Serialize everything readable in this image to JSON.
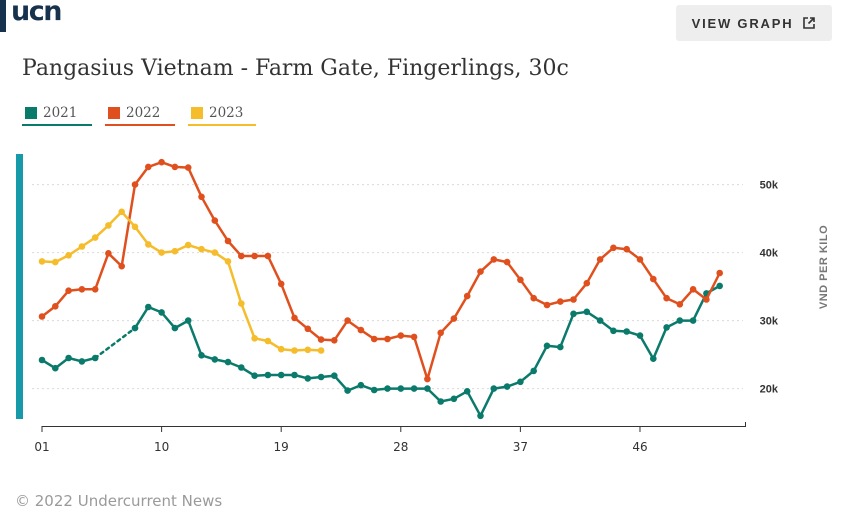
{
  "logo": {
    "text": "ucn"
  },
  "header": {
    "view_graph_label": "VIEW GRAPH",
    "view_graph_icon": "external-link-icon",
    "title": "Pangasius Vietnam - Farm Gate, Fingerlings, 30c"
  },
  "footer": {
    "copyright": "© 2022 Undercurrent News"
  },
  "colors": {
    "2021": "#0a7a6b",
    "2022": "#e0501e",
    "2023": "#f5bc2c",
    "accent": "#1699a8",
    "brand": "#17324d"
  },
  "chart_data": {
    "type": "line",
    "xlabel": "",
    "ylabel": "VND PER KILO",
    "x_ticks": [
      "01",
      "10",
      "19",
      "28",
      "37",
      "46"
    ],
    "x_range": [
      1,
      53
    ],
    "y_ticks": [
      "20k",
      "30k",
      "40k",
      "50k"
    ],
    "ylim": [
      14500,
      54500
    ],
    "grid": "horizontal dotted",
    "legend_position": "top-left",
    "series": [
      {
        "name": "2021",
        "color": "#0a7a6b",
        "points": [
          [
            1,
            24200
          ],
          [
            2,
            23000
          ],
          [
            3,
            24500
          ],
          [
            4,
            24000
          ],
          [
            5,
            24500
          ],
          [
            8,
            28900
          ],
          [
            9,
            32000
          ],
          [
            10,
            31200
          ],
          [
            11,
            28900
          ],
          [
            12,
            30000
          ],
          [
            13,
            24900
          ],
          [
            14,
            24300
          ],
          [
            15,
            23900
          ],
          [
            16,
            23100
          ],
          [
            17,
            21900
          ],
          [
            18,
            22000
          ],
          [
            19,
            22000
          ],
          [
            20,
            22000
          ],
          [
            21,
            21500
          ],
          [
            22,
            21700
          ],
          [
            23,
            21900
          ],
          [
            24,
            19700
          ],
          [
            25,
            20500
          ],
          [
            26,
            19800
          ],
          [
            27,
            20000
          ],
          [
            28,
            20000
          ],
          [
            29,
            20000
          ],
          [
            30,
            20000
          ],
          [
            31,
            18100
          ],
          [
            32,
            18500
          ],
          [
            33,
            19600
          ],
          [
            34,
            16000
          ],
          [
            35,
            20000
          ],
          [
            36,
            20300
          ],
          [
            37,
            21000
          ],
          [
            38,
            22600
          ],
          [
            39,
            26300
          ],
          [
            40,
            26100
          ],
          [
            41,
            31000
          ],
          [
            42,
            31300
          ],
          [
            43,
            30000
          ],
          [
            44,
            28500
          ],
          [
            45,
            28400
          ],
          [
            46,
            27800
          ],
          [
            47,
            24400
          ],
          [
            48,
            29000
          ],
          [
            49,
            30000
          ],
          [
            50,
            30000
          ],
          [
            51,
            34000
          ],
          [
            52,
            35100
          ]
        ],
        "dashed_segment": [
          5,
          8
        ]
      },
      {
        "name": "2022",
        "color": "#e0501e",
        "points": [
          [
            1,
            30600
          ],
          [
            2,
            32100
          ],
          [
            3,
            34400
          ],
          [
            4,
            34600
          ],
          [
            5,
            34600
          ],
          [
            6,
            39900
          ],
          [
            7,
            38000
          ],
          [
            8,
            50000
          ],
          [
            9,
            52600
          ],
          [
            10,
            53300
          ],
          [
            11,
            52600
          ],
          [
            12,
            52500
          ],
          [
            13,
            48200
          ],
          [
            14,
            44700
          ],
          [
            15,
            41700
          ],
          [
            16,
            39500
          ],
          [
            17,
            39500
          ],
          [
            18,
            39500
          ],
          [
            19,
            35400
          ],
          [
            20,
            30400
          ],
          [
            21,
            28800
          ],
          [
            22,
            27200
          ],
          [
            23,
            27100
          ],
          [
            24,
            30000
          ],
          [
            25,
            28600
          ],
          [
            26,
            27300
          ],
          [
            27,
            27300
          ],
          [
            28,
            27800
          ],
          [
            29,
            27600
          ],
          [
            30,
            21400
          ],
          [
            31,
            28200
          ],
          [
            32,
            30300
          ],
          [
            33,
            33600
          ],
          [
            34,
            37200
          ],
          [
            35,
            39000
          ],
          [
            36,
            38600
          ],
          [
            37,
            36000
          ],
          [
            38,
            33300
          ],
          [
            39,
            32300
          ],
          [
            40,
            32800
          ],
          [
            41,
            33100
          ],
          [
            42,
            35500
          ],
          [
            43,
            39000
          ],
          [
            44,
            40700
          ],
          [
            45,
            40500
          ],
          [
            46,
            39000
          ],
          [
            47,
            36100
          ],
          [
            48,
            33300
          ],
          [
            49,
            32400
          ],
          [
            50,
            34600
          ],
          [
            51,
            33100
          ],
          [
            52,
            37000
          ]
        ]
      },
      {
        "name": "2023",
        "color": "#f5bc2c",
        "points": [
          [
            1,
            38700
          ],
          [
            2,
            38600
          ],
          [
            3,
            39600
          ],
          [
            4,
            40900
          ],
          [
            5,
            42200
          ],
          [
            6,
            44000
          ],
          [
            7,
            46000
          ],
          [
            8,
            43800
          ],
          [
            9,
            41200
          ],
          [
            10,
            40000
          ],
          [
            11,
            40200
          ],
          [
            12,
            41100
          ],
          [
            13,
            40500
          ],
          [
            14,
            40000
          ],
          [
            15,
            38700
          ],
          [
            16,
            32500
          ],
          [
            17,
            27400
          ],
          [
            18,
            27000
          ],
          [
            19,
            25800
          ],
          [
            20,
            25600
          ],
          [
            21,
            25700
          ],
          [
            22,
            25600
          ]
        ]
      }
    ]
  }
}
